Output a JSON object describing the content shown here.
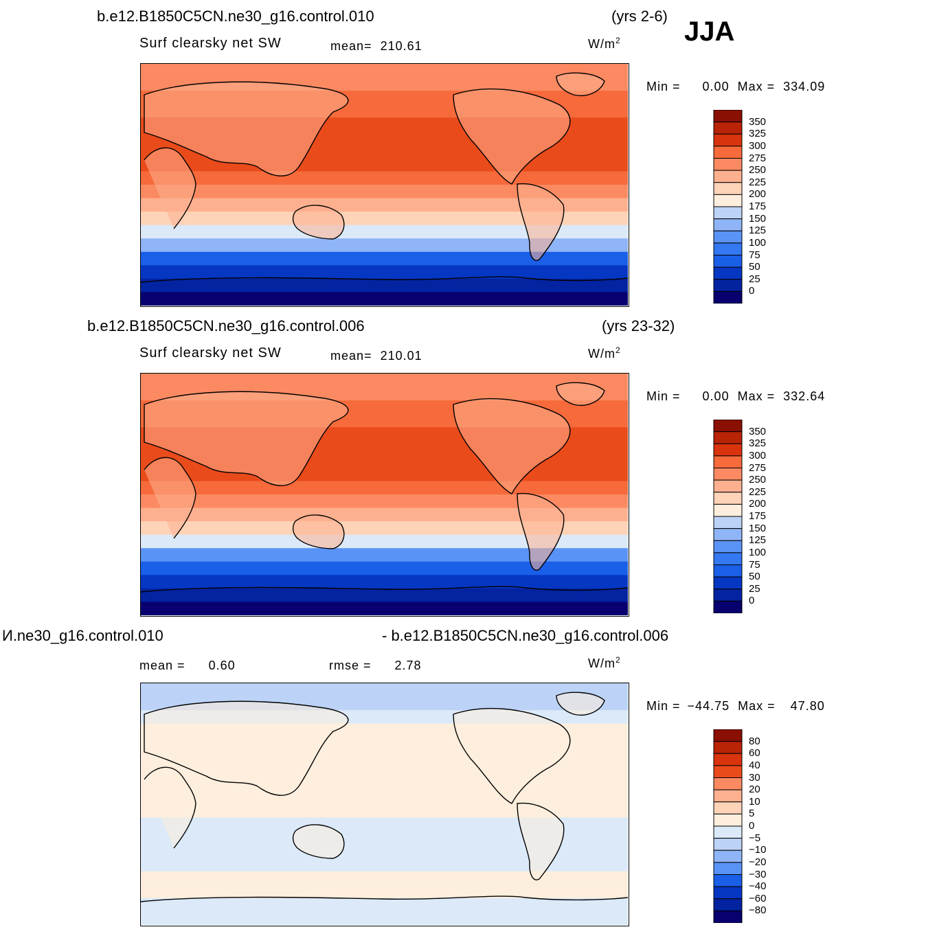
{
  "season": "JJA",
  "units_prefix": "W/m",
  "units_sup": "2",
  "colors": {
    "abs_scale": [
      "#08006e",
      "#0323a1",
      "#0537c2",
      "#0a4bd8",
      "#1a5fe8",
      "#3478f2",
      "#5a93f6",
      "#8fb4f7",
      "#bcd3f7",
      "#dbe9f8",
      "#fdeedd",
      "#fed3b8",
      "#fdb08f",
      "#fb8a62",
      "#f66a3b",
      "#ea4b1b",
      "#d9340d",
      "#b92306",
      "#8a1004"
    ],
    "diff_scale": [
      "#08006e",
      "#0323a1",
      "#0537c2",
      "#1a5fe8",
      "#3478f2",
      "#5a93f6",
      "#8fb4f7",
      "#bcd3f7",
      "#dbe9f8",
      "#fdeedd",
      "#fed3b8",
      "#fdb08f",
      "#fb8a62",
      "#f66a3b",
      "#ea4b1b",
      "#d9340d",
      "#b92306",
      "#8a1004"
    ]
  },
  "chart_data": [
    {
      "type": "heatmap",
      "case": "b.e12.B1850C5CN.ne30_g16.control.010",
      "years": "(yrs 2-6)",
      "variable": "Surf clearsky net SW",
      "mean_label": "mean=",
      "mean_value": "210.61",
      "min_label": "Min =",
      "min_value": "0.00",
      "max_label": "Max =",
      "max_value": "334.09",
      "colorbar_levels": [
        "350",
        "325",
        "300",
        "275",
        "250",
        "225",
        "200",
        "175",
        "150",
        "125",
        "100",
        "75",
        "50",
        "25",
        "0"
      ],
      "zonal_profile_lat": [
        90,
        80,
        70,
        60,
        50,
        40,
        30,
        20,
        10,
        0,
        -10,
        -20,
        -30,
        -40,
        -50,
        -60,
        -70,
        -80,
        -90
      ],
      "zonal_profile_value": [
        255,
        260,
        270,
        280,
        290,
        300,
        305,
        300,
        292,
        282,
        262,
        232,
        200,
        162,
        112,
        72,
        38,
        22,
        16
      ]
    },
    {
      "type": "heatmap",
      "case": "b.e12.B1850C5CN.ne30_g16.control.006",
      "years": "(yrs 23-32)",
      "variable": "Surf clearsky net SW",
      "mean_label": "mean=",
      "mean_value": "210.01",
      "min_label": "Min =",
      "min_value": "0.00",
      "max_label": "Max =",
      "max_value": "332.64",
      "colorbar_levels": [
        "350",
        "325",
        "300",
        "275",
        "250",
        "225",
        "200",
        "175",
        "150",
        "125",
        "100",
        "75",
        "50",
        "25",
        "0"
      ],
      "zonal_profile_lat": [
        90,
        80,
        70,
        60,
        50,
        40,
        30,
        20,
        10,
        0,
        -10,
        -20,
        -30,
        -40,
        -50,
        -60,
        -70,
        -80,
        -90
      ],
      "zonal_profile_value": [
        255,
        260,
        270,
        282,
        292,
        302,
        306,
        300,
        292,
        282,
        262,
        232,
        200,
        160,
        110,
        70,
        36,
        20,
        15
      ]
    },
    {
      "type": "heatmap",
      "case_left": "И.ne30_g16.control.010",
      "case_right": "- b.e12.B1850C5CN.ne30_g16.control.006",
      "mean_label": "mean =",
      "mean_value": "0.60",
      "rmse_label": "rmse =",
      "rmse_value": "2.78",
      "min_label": "Min =",
      "min_value": "−44.75",
      "max_label": "Max =",
      "max_value": "47.80",
      "colorbar_levels": [
        "80",
        "60",
        "40",
        "30",
        "20",
        "10",
        "5",
        "0",
        "−5",
        "−10",
        "−20",
        "−30",
        "−40",
        "−60",
        "−80"
      ],
      "zonal_profile_lat": [
        90,
        80,
        70,
        60,
        50,
        40,
        30,
        20,
        10,
        0,
        -10,
        -20,
        -30,
        -40,
        -50,
        -60,
        -70,
        -80,
        -90
      ],
      "zonal_profile_value": [
        -12,
        -8,
        -3,
        1,
        2,
        2,
        1,
        1,
        1,
        1,
        1,
        -2,
        1,
        -2,
        1,
        1,
        -1,
        -2,
        -3
      ]
    }
  ]
}
